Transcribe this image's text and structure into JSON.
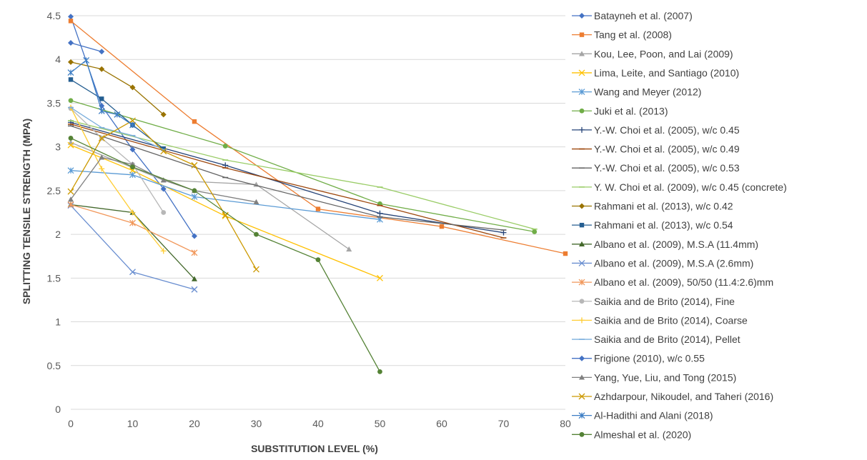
{
  "chart_data": {
    "type": "line",
    "title": "",
    "xlabel": "SUBSTITUTION LEVEL (%)",
    "ylabel": "SPLITTING TENSILE STRENGTH (MPA)",
    "xlim": [
      0,
      80
    ],
    "ylim": [
      0,
      4.5
    ],
    "x_ticks": [
      "0",
      "10",
      "20",
      "30",
      "40",
      "50",
      "60",
      "70",
      "80"
    ],
    "y_ticks": [
      "0",
      "0.5",
      "1",
      "1.5",
      "2",
      "2.5",
      "3",
      "3.5",
      "4",
      "4.5"
    ],
    "grid": "horizontal",
    "legend_position": "right",
    "series": [
      {
        "name": "Batayneh et al. (2007)",
        "color": "#4472C4",
        "marker": "diamond",
        "x": [
          0,
          5,
          10,
          15,
          20
        ],
        "y": [
          4.49,
          3.47,
          2.97,
          2.52,
          1.98
        ]
      },
      {
        "name": "Tang et al. (2008)",
        "color": "#ED7D31",
        "marker": "square",
        "x": [
          0,
          20,
          40,
          60,
          80
        ],
        "y": [
          4.44,
          3.29,
          2.29,
          2.09,
          1.78
        ]
      },
      {
        "name": "Kou, Lee, Poon, and Lai (2009)",
        "color": "#A5A5A5",
        "marker": "triangle",
        "x": [
          0,
          15,
          30,
          45
        ],
        "y": [
          3.05,
          2.62,
          2.57,
          1.83
        ]
      },
      {
        "name": "Lima, Leite, and Santiago (2010)",
        "color": "#FFC000",
        "marker": "x",
        "x": [
          0,
          10,
          25,
          50
        ],
        "y": [
          3.02,
          2.73,
          2.21,
          1.5
        ]
      },
      {
        "name": "Wang and Meyer (2012)",
        "color": "#5B9BD5",
        "marker": "asterisk",
        "x": [
          0,
          10,
          20,
          50
        ],
        "y": [
          2.73,
          2.68,
          2.43,
          2.17
        ]
      },
      {
        "name": "Juki et al. (2013)",
        "color": "#70AD47",
        "marker": "circle",
        "x": [
          0,
          25,
          50,
          75
        ],
        "y": [
          3.53,
          3.01,
          2.35,
          2.03
        ]
      },
      {
        "name": "Y.-W. Choi et al. (2005), w/c 0.45",
        "color": "#264478",
        "marker": "plus",
        "x": [
          0,
          25,
          50,
          70
        ],
        "y": [
          3.28,
          2.79,
          2.24,
          2.02
        ]
      },
      {
        "name": "Y.-W. Choi et al. (2005), w/c 0.49",
        "color": "#9E480E",
        "marker": "dash",
        "x": [
          0,
          25,
          50,
          70
        ],
        "y": [
          3.26,
          2.76,
          2.33,
          1.96
        ]
      },
      {
        "name": "Y.-W. Choi et al. (2005), w/c 0.53",
        "color": "#636363",
        "marker": "dash",
        "x": [
          0,
          25,
          50,
          70
        ],
        "y": [
          3.24,
          2.65,
          2.2,
          2.05
        ]
      },
      {
        "name": "Y. W. Choi et al. (2009), w/c 0.45 (concrete)",
        "color": "#99CC66",
        "marker": "dash",
        "x": [
          0,
          25,
          50,
          75
        ],
        "y": [
          3.3,
          2.85,
          2.54,
          2.06
        ]
      },
      {
        "name": "Rahmani et al. (2013), w/c 0.42",
        "color": "#997300",
        "marker": "diamond",
        "x": [
          0,
          5,
          10,
          15
        ],
        "y": [
          3.97,
          3.89,
          3.68,
          3.37
        ]
      },
      {
        "name": "Rahmani et al. (2013), w/c 0.54",
        "color": "#255E91",
        "marker": "square",
        "x": [
          0,
          5,
          10,
          15
        ],
        "y": [
          3.77,
          3.55,
          3.25,
          2.98
        ]
      },
      {
        "name": "Albano et al. (2009), M.S.A (11.4mm)",
        "color": "#43682B",
        "marker": "triangle",
        "x": [
          0,
          10,
          20
        ],
        "y": [
          2.34,
          2.25,
          1.49
        ]
      },
      {
        "name": "Albano et al. (2009), M.S.A (2.6mm)",
        "color": "#698ED0",
        "marker": "x",
        "x": [
          0,
          10,
          20
        ],
        "y": [
          2.33,
          1.57,
          1.37
        ]
      },
      {
        "name": "Albano et al. (2009), 50/50 (11.4:2.6)mm",
        "color": "#F1975A",
        "marker": "asterisk",
        "x": [
          0,
          10,
          20
        ],
        "y": [
          2.34,
          2.13,
          1.79
        ]
      },
      {
        "name": "Saikia and de Brito (2014), Fine",
        "color": "#B7B7B7",
        "marker": "circle",
        "x": [
          0,
          5,
          10,
          15
        ],
        "y": [
          3.44,
          3.1,
          2.8,
          2.25
        ]
      },
      {
        "name": "Saikia and de Brito (2014), Coarse",
        "color": "#FFCD33",
        "marker": "plus",
        "x": [
          0,
          5,
          10,
          15
        ],
        "y": [
          3.45,
          2.75,
          2.25,
          1.81
        ]
      },
      {
        "name": "Saikia and de Brito (2014), Pellet",
        "color": "#7CAFDD",
        "marker": "dash",
        "x": [
          0,
          5,
          10,
          15
        ],
        "y": [
          3.45,
          3.22,
          3.13,
          2.97
        ]
      },
      {
        "name": "Frigione (2010), w/c 0.55",
        "color": "#4472C4",
        "marker": "diamond",
        "x": [
          0,
          5
        ],
        "y": [
          4.19,
          4.09
        ]
      },
      {
        "name": "Yang, Yue, Liu, and Tong (2015)",
        "color": "#808080",
        "marker": "triangle",
        "x": [
          0,
          5,
          10,
          15,
          20,
          30
        ],
        "y": [
          2.4,
          2.88,
          2.8,
          2.62,
          2.5,
          2.37
        ]
      },
      {
        "name": "Azhdarpour, Nikoudel, and Taheri (2016)",
        "color": "#CC9900",
        "marker": "x",
        "x": [
          0,
          5,
          10,
          15,
          20,
          25,
          30
        ],
        "y": [
          2.49,
          3.1,
          3.3,
          2.95,
          2.79,
          2.22,
          1.6
        ]
      },
      {
        "name": "Al-Hadithi and Alani (2018)",
        "color": "#3C7DC4",
        "marker": "asterisk",
        "x": [
          0,
          2.5,
          5,
          7.5,
          10
        ],
        "y": [
          3.85,
          3.99,
          3.41,
          3.37,
          3.25
        ]
      },
      {
        "name": "Almeshal et al. (2020)",
        "color": "#548235",
        "marker": "circle",
        "x": [
          0,
          10,
          20,
          30,
          40,
          50
        ],
        "y": [
          3.1,
          2.77,
          2.5,
          2.0,
          1.71,
          0.43
        ]
      }
    ]
  }
}
